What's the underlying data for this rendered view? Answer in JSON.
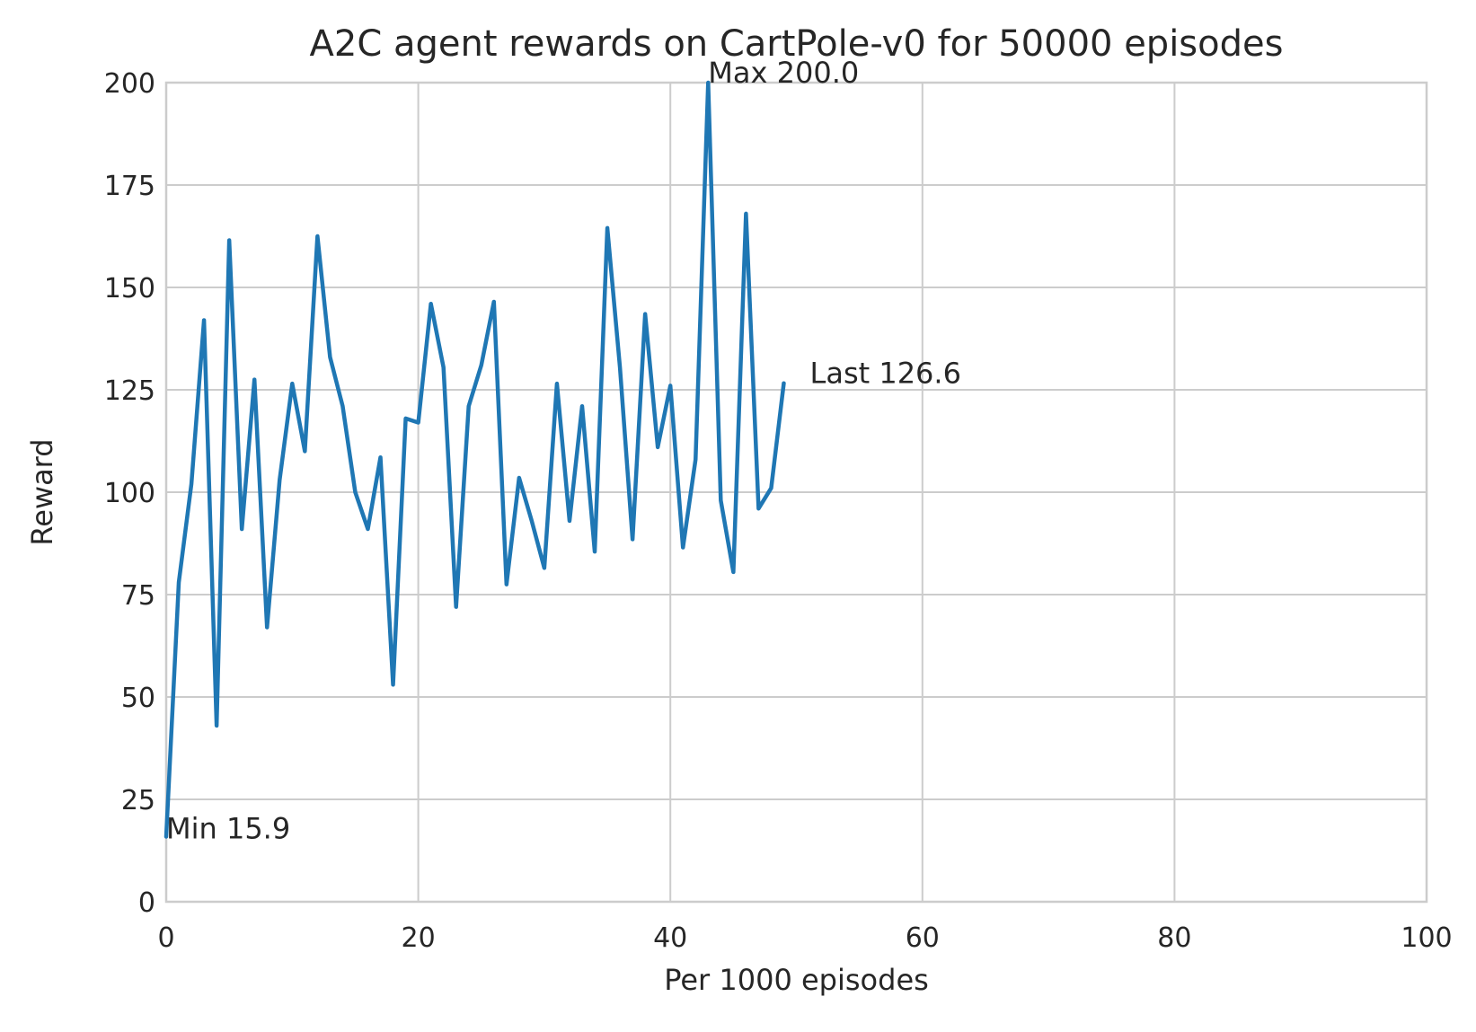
{
  "chart_data": {
    "type": "line",
    "title": "A2C agent rewards on CartPole-v0 for 50000 episodes",
    "xlabel": "Per 1000 episodes",
    "ylabel": "Reward",
    "xlim": [
      0,
      100
    ],
    "ylim": [
      0,
      200
    ],
    "xticks": [
      0,
      20,
      40,
      60,
      80,
      100
    ],
    "yticks": [
      0,
      25,
      50,
      75,
      100,
      125,
      150,
      175,
      200
    ],
    "grid": true,
    "line_color": "#1f77b4",
    "grid_color": "#cccccc",
    "x": [
      0,
      1,
      2,
      3,
      4,
      5,
      6,
      7,
      8,
      9,
      10,
      11,
      12,
      13,
      14,
      15,
      16,
      17,
      18,
      19,
      20,
      21,
      22,
      23,
      24,
      25,
      26,
      27,
      28,
      29,
      30,
      31,
      32,
      33,
      34,
      35,
      36,
      37,
      38,
      39,
      40,
      41,
      42,
      43,
      44,
      45,
      46,
      47,
      48,
      49
    ],
    "series": [
      {
        "values": [
          15.9,
          78,
          102,
          142,
          43,
          161.5,
          91,
          127.5,
          67,
          103,
          126.5,
          110,
          162.5,
          133,
          121,
          100,
          91,
          108.5,
          53,
          118,
          117,
          146,
          130.5,
          72,
          121,
          131,
          146.5,
          77.5,
          103.5,
          93,
          81.5,
          126.5,
          93,
          121,
          85.5,
          164.5,
          130.5,
          88.5,
          143.5,
          111,
          126,
          86.5,
          108,
          200,
          98,
          80.5,
          168,
          96,
          101,
          126.6
        ]
      }
    ],
    "annotations": [
      {
        "text": "Min 15.9",
        "x": 0,
        "y": 15.9
      },
      {
        "text": "Max 200.0",
        "x": 43,
        "y": 200.0
      },
      {
        "text": "Last 126.6",
        "x": 50,
        "y": 126.6
      }
    ]
  }
}
